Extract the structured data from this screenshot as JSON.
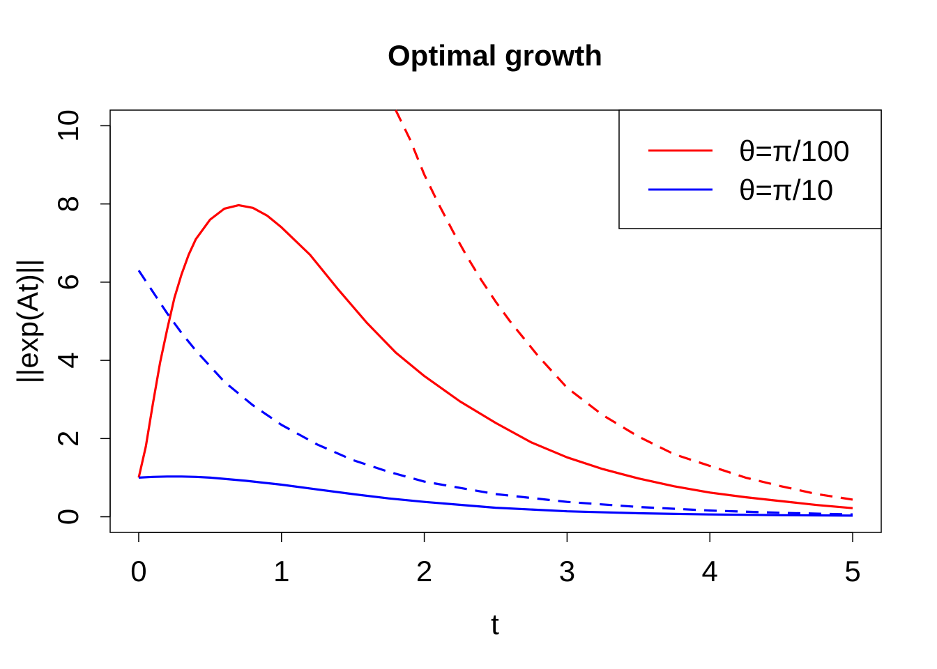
{
  "chart_data": {
    "type": "line",
    "title": "Optimal growth",
    "xlabel": "t",
    "ylabel": "||exp(At)||",
    "xlim": [
      -0.2,
      5.2
    ],
    "ylim": [
      -0.4,
      10.4
    ],
    "x_ticks": [
      "0",
      "1",
      "2",
      "3",
      "4",
      "5"
    ],
    "y_ticks": [
      "0",
      "2",
      "4",
      "6",
      "8",
      "10"
    ],
    "grid": false,
    "legend_position": "top-right",
    "legend": [
      {
        "label": "θ=π/100",
        "color": "#ff0000"
      },
      {
        "label": "θ=π/10",
        "color": "#0000ff"
      }
    ],
    "series": [
      {
        "name": "θ=π/100",
        "color": "#ff0000",
        "style": "solid",
        "x": [
          0,
          0.05,
          0.1,
          0.15,
          0.2,
          0.25,
          0.3,
          0.35,
          0.4,
          0.5,
          0.6,
          0.7,
          0.8,
          0.9,
          1.0,
          1.2,
          1.4,
          1.6,
          1.8,
          2.0,
          2.25,
          2.5,
          2.75,
          3.0,
          3.25,
          3.5,
          3.75,
          4.0,
          4.25,
          4.5,
          4.75,
          5.0
        ],
        "y": [
          1.0,
          1.8,
          2.9,
          3.95,
          4.8,
          5.6,
          6.2,
          6.7,
          7.1,
          7.6,
          7.88,
          7.97,
          7.9,
          7.7,
          7.4,
          6.7,
          5.8,
          4.95,
          4.2,
          3.6,
          2.95,
          2.4,
          1.9,
          1.52,
          1.22,
          0.98,
          0.78,
          0.62,
          0.5,
          0.4,
          0.3,
          0.22
        ]
      },
      {
        "name": "",
        "color": "#ff0000",
        "style": "dashed",
        "x": [
          1.8,
          1.9,
          2.0,
          2.1,
          2.2,
          2.3,
          2.4,
          2.5,
          2.6,
          2.8,
          3.0,
          3.25,
          3.5,
          3.75,
          4.0,
          4.25,
          4.5,
          4.75,
          5.0
        ],
        "y": [
          10.4,
          9.65,
          8.75,
          8.0,
          7.3,
          6.65,
          6.05,
          5.5,
          5.0,
          4.1,
          3.3,
          2.6,
          2.05,
          1.6,
          1.3,
          1.0,
          0.78,
          0.58,
          0.44
        ]
      },
      {
        "name": "θ=π/10",
        "color": "#0000ff",
        "style": "solid",
        "x": [
          0,
          0.1,
          0.2,
          0.3,
          0.4,
          0.5,
          0.75,
          1.0,
          1.25,
          1.5,
          1.75,
          2.0,
          2.5,
          3.0,
          3.5,
          4.0,
          4.5,
          5.0
        ],
        "y": [
          1.0,
          1.02,
          1.03,
          1.03,
          1.02,
          1.0,
          0.92,
          0.82,
          0.7,
          0.58,
          0.47,
          0.38,
          0.23,
          0.14,
          0.09,
          0.06,
          0.04,
          0.03
        ]
      },
      {
        "name": "",
        "color": "#0000ff",
        "style": "dashed",
        "x": [
          0,
          0.1,
          0.2,
          0.3,
          0.4,
          0.5,
          0.6,
          0.8,
          1.0,
          1.25,
          1.5,
          1.75,
          2.0,
          2.5,
          3.0,
          3.5,
          4.0,
          4.5,
          5.0
        ],
        "y": [
          6.3,
          5.75,
          5.2,
          4.7,
          4.25,
          3.85,
          3.45,
          2.85,
          2.35,
          1.85,
          1.45,
          1.15,
          0.9,
          0.58,
          0.38,
          0.25,
          0.16,
          0.1,
          0.06
        ]
      }
    ]
  }
}
